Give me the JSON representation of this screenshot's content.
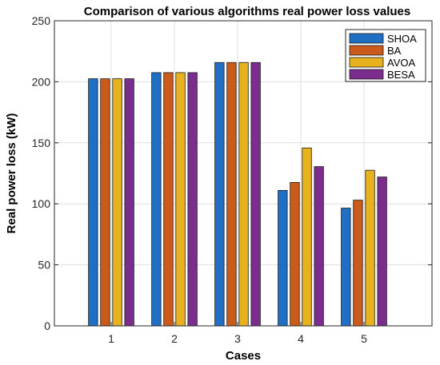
{
  "chart_data": {
    "type": "bar",
    "title": "Comparison of various algorithms real power loss values",
    "xlabel": "Cases",
    "ylabel": "Real power loss (kW)",
    "categories": [
      "1",
      "2",
      "3",
      "4",
      "5"
    ],
    "ylim": [
      0,
      250
    ],
    "yticks": [
      "0",
      "50",
      "100",
      "150",
      "200",
      "250"
    ],
    "grid": true,
    "legend_position": "top-right",
    "series": [
      {
        "name": "SHOA",
        "color": "#1f6fc4",
        "values": [
          202.5,
          207.5,
          215.8,
          111.0,
          96.5
        ]
      },
      {
        "name": "BA",
        "color": "#cc5a1a",
        "values": [
          202.5,
          207.5,
          215.8,
          117.5,
          103.0
        ]
      },
      {
        "name": "AVOA",
        "color": "#e8b21f",
        "values": [
          202.5,
          207.5,
          215.8,
          145.8,
          127.5
        ]
      },
      {
        "name": "BESA",
        "color": "#7b2d8e",
        "values": [
          202.5,
          207.5,
          215.8,
          130.5,
          122.0
        ]
      }
    ]
  }
}
